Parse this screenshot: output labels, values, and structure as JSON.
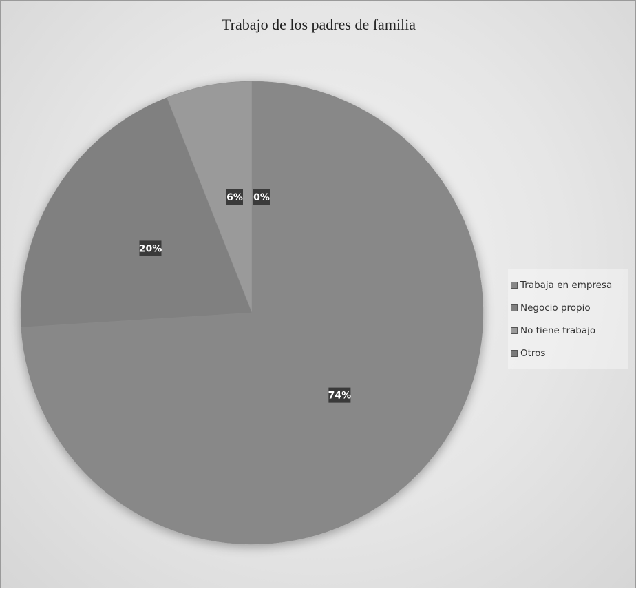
{
  "chart_data": {
    "type": "pie",
    "title": "Trabajo de los padres de familia",
    "categories": [
      "Trabaja en empresa",
      "Negocio propio",
      "No tiene trabajo",
      "Otros"
    ],
    "values": [
      74,
      20,
      6,
      0
    ],
    "labels": [
      "74%",
      "20%",
      "6%",
      "0%"
    ],
    "colors": [
      "#888888",
      "#808080",
      "#9a9a9a",
      "#7a7a7a"
    ],
    "legend_position": "right"
  }
}
